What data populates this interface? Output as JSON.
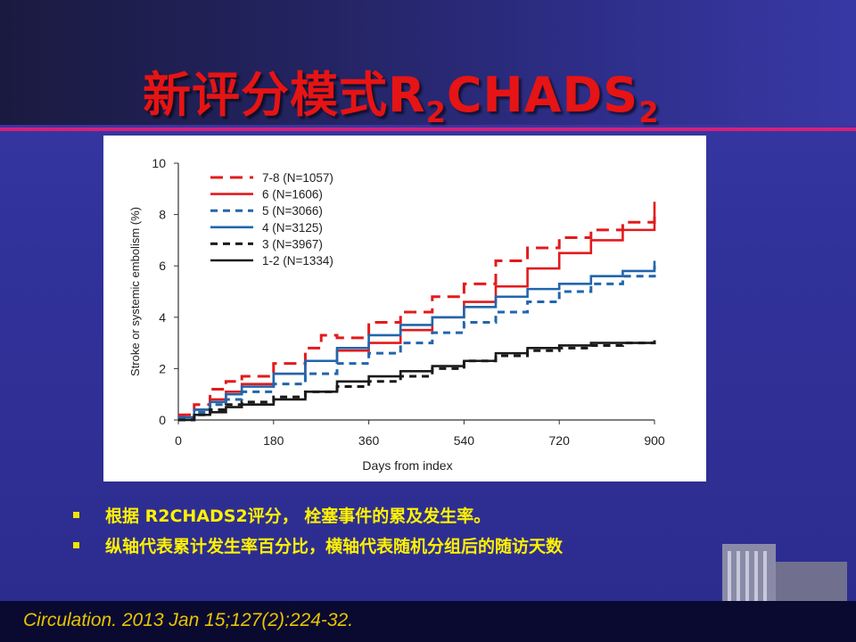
{
  "slide": {
    "title_main": "新评分模式R",
    "title_sub1": "2",
    "title_mid": "CHADS",
    "title_sub2": "2",
    "bullets": [
      "根据 R2CHADS2评分， 栓塞事件的累及发生率。",
      "纵轴代表累计发生率百分比，横轴代表随机分组后的随访天数"
    ],
    "citation": "Circulation. 2013 Jan 15;127(2):224-32.",
    "colors": {
      "title": "#e61414",
      "bullets": "#fff200",
      "rule": "#d81f7a",
      "citation": "#e8c400"
    }
  },
  "chart_data": {
    "type": "line",
    "title": "",
    "xlabel": "Days from index",
    "ylabel": "Stroke or systemic embolism (%)",
    "xlim": [
      0,
      900
    ],
    "ylim": [
      0,
      10
    ],
    "xticks": [
      0,
      180,
      360,
      540,
      720,
      900
    ],
    "yticks": [
      0,
      2,
      4,
      6,
      8,
      10
    ],
    "legend_position": "top-left",
    "series": [
      {
        "name": "7-8 (N=1057)",
        "color": "#e31a1c",
        "style": "dashed",
        "x": [
          0,
          30,
          60,
          90,
          120,
          180,
          240,
          270,
          300,
          360,
          420,
          480,
          540,
          600,
          660,
          720,
          780,
          840,
          900
        ],
        "y": [
          0.2,
          0.6,
          1.2,
          1.5,
          1.7,
          2.2,
          2.8,
          3.3,
          3.2,
          3.8,
          4.2,
          4.8,
          5.3,
          6.2,
          6.7,
          7.1,
          7.4,
          7.7,
          8.1
        ]
      },
      {
        "name": "6 (N=1606)",
        "color": "#e31a1c",
        "style": "solid",
        "x": [
          0,
          30,
          60,
          90,
          120,
          180,
          240,
          300,
          360,
          420,
          480,
          540,
          600,
          660,
          720,
          780,
          840,
          900
        ],
        "y": [
          0.1,
          0.4,
          0.8,
          1.1,
          1.4,
          1.8,
          2.3,
          2.7,
          3.0,
          3.5,
          4.0,
          4.6,
          5.2,
          5.9,
          6.5,
          7.0,
          7.4,
          8.5
        ]
      },
      {
        "name": "5 (N=3066)",
        "color": "#2166ac",
        "style": "dashed",
        "x": [
          0,
          30,
          60,
          90,
          120,
          180,
          240,
          300,
          360,
          420,
          480,
          540,
          600,
          660,
          720,
          780,
          840,
          900
        ],
        "y": [
          0.1,
          0.3,
          0.6,
          0.8,
          1.1,
          1.4,
          1.8,
          2.2,
          2.6,
          3.0,
          3.4,
          3.8,
          4.2,
          4.6,
          5.0,
          5.3,
          5.6,
          6.0
        ]
      },
      {
        "name": "4 (N=3125)",
        "color": "#2166ac",
        "style": "solid",
        "x": [
          0,
          30,
          60,
          90,
          120,
          180,
          240,
          300,
          360,
          420,
          480,
          540,
          600,
          660,
          720,
          780,
          840,
          900
        ],
        "y": [
          0.1,
          0.4,
          0.7,
          1.0,
          1.3,
          1.8,
          2.3,
          2.8,
          3.3,
          3.7,
          4.0,
          4.4,
          4.8,
          5.1,
          5.3,
          5.6,
          5.8,
          6.2
        ]
      },
      {
        "name": "3 (N=3967)",
        "color": "#1a1a1a",
        "style": "dashed",
        "x": [
          0,
          30,
          60,
          90,
          120,
          180,
          240,
          300,
          360,
          420,
          480,
          540,
          600,
          660,
          720,
          780,
          840,
          900
        ],
        "y": [
          0.0,
          0.2,
          0.4,
          0.6,
          0.7,
          0.9,
          1.1,
          1.3,
          1.5,
          1.7,
          2.0,
          2.3,
          2.5,
          2.7,
          2.8,
          2.9,
          3.0,
          3.1
        ]
      },
      {
        "name": "1-2 (N=1334)",
        "color": "#1a1a1a",
        "style": "solid",
        "x": [
          0,
          30,
          60,
          90,
          120,
          180,
          240,
          300,
          360,
          420,
          480,
          540,
          600,
          660,
          720,
          780,
          840,
          900
        ],
        "y": [
          0.0,
          0.2,
          0.3,
          0.5,
          0.6,
          0.8,
          1.1,
          1.5,
          1.7,
          1.9,
          2.1,
          2.3,
          2.6,
          2.8,
          2.9,
          3.0,
          3.0,
          3.1
        ]
      }
    ]
  }
}
